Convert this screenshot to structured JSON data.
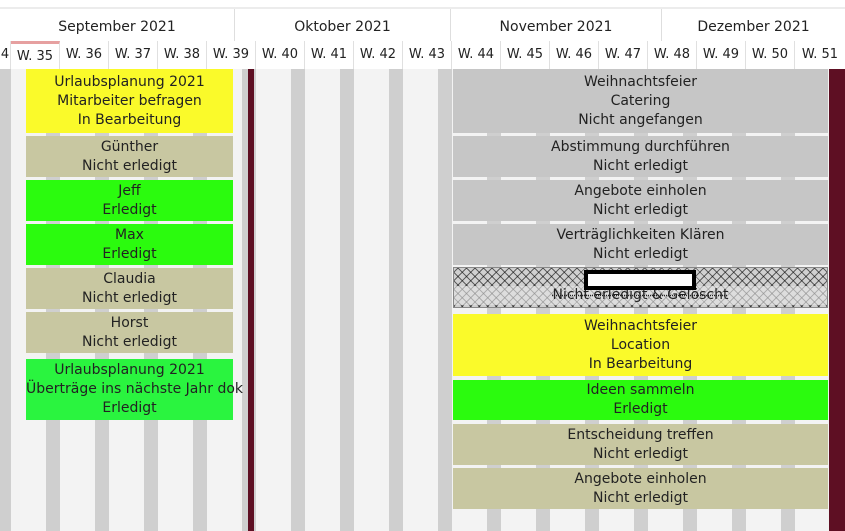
{
  "timeline": {
    "months": [
      "September 2021",
      "Oktober 2021",
      "November 2021",
      "Dezember 2021"
    ],
    "weeks": [
      "4",
      "W. 35",
      "W. 36",
      "W. 37",
      "W. 38",
      "W. 39",
      "W. 40",
      "W. 41",
      "W. 42",
      "W. 43",
      "W. 44",
      "W. 45",
      "W. 46",
      "W. 47",
      "W. 48",
      "W. 49",
      "W. 50",
      "W. 51"
    ]
  },
  "tasks_left": [
    {
      "lines": [
        "Urlaubsplanung 2021",
        "Mitarbeiter befragen",
        "In Bearbeitung"
      ],
      "status_color": "#fafa2a"
    },
    {
      "lines": [
        "Günther",
        "Nicht erledigt"
      ],
      "status_color": "#c8c7a1"
    },
    {
      "lines": [
        "Jeff",
        "Erledigt"
      ],
      "status_color": "#2bfb0e"
    },
    {
      "lines": [
        "Max",
        "Erledigt"
      ],
      "status_color": "#2bfb0e"
    },
    {
      "lines": [
        "Claudia",
        "Nicht erledigt"
      ],
      "status_color": "#c8c7a1"
    },
    {
      "lines": [
        "Horst",
        "Nicht erledigt"
      ],
      "status_color": "#c8c7a1"
    },
    {
      "lines": [
        "Urlaubsplanung 2021",
        "Überträge ins nächste Jahr dok",
        "Erledigt"
      ],
      "status_color": "#2af43f"
    }
  ],
  "tasks_right": [
    {
      "lines": [
        "Weihnachtsfeier",
        "Catering",
        "Nicht angefangen"
      ],
      "status_color": "#c6c6c6"
    },
    {
      "lines": [
        "Abstimmung durchführen",
        "Nicht erledigt"
      ],
      "status_color": "#c6c6c6"
    },
    {
      "lines": [
        "Angebote einholen",
        "Nicht erledigt"
      ],
      "status_color": "#c6c6c6"
    },
    {
      "lines": [
        "Verträglichkeiten Klären",
        "Nicht erledigt"
      ],
      "status_color": "#c6c6c6"
    },
    {
      "lines": [
        "Nicht erledigt & Gelöscht"
      ],
      "status_color": "#d0d0d0"
    },
    {
      "lines": [
        "Weihnachtsfeier",
        "Location",
        "In Bearbeitung"
      ],
      "status_color": "#fafa2a"
    },
    {
      "lines": [
        "Ideen sammeln",
        "Erledigt"
      ],
      "status_color": "#2bfb0e"
    },
    {
      "lines": [
        "Entscheidung treffen",
        "Nicht erledigt"
      ],
      "status_color": "#c8c7a1"
    },
    {
      "lines": [
        "Angebote einholen",
        "Nicht erledigt"
      ],
      "status_color": "#c8c7a1"
    }
  ]
}
